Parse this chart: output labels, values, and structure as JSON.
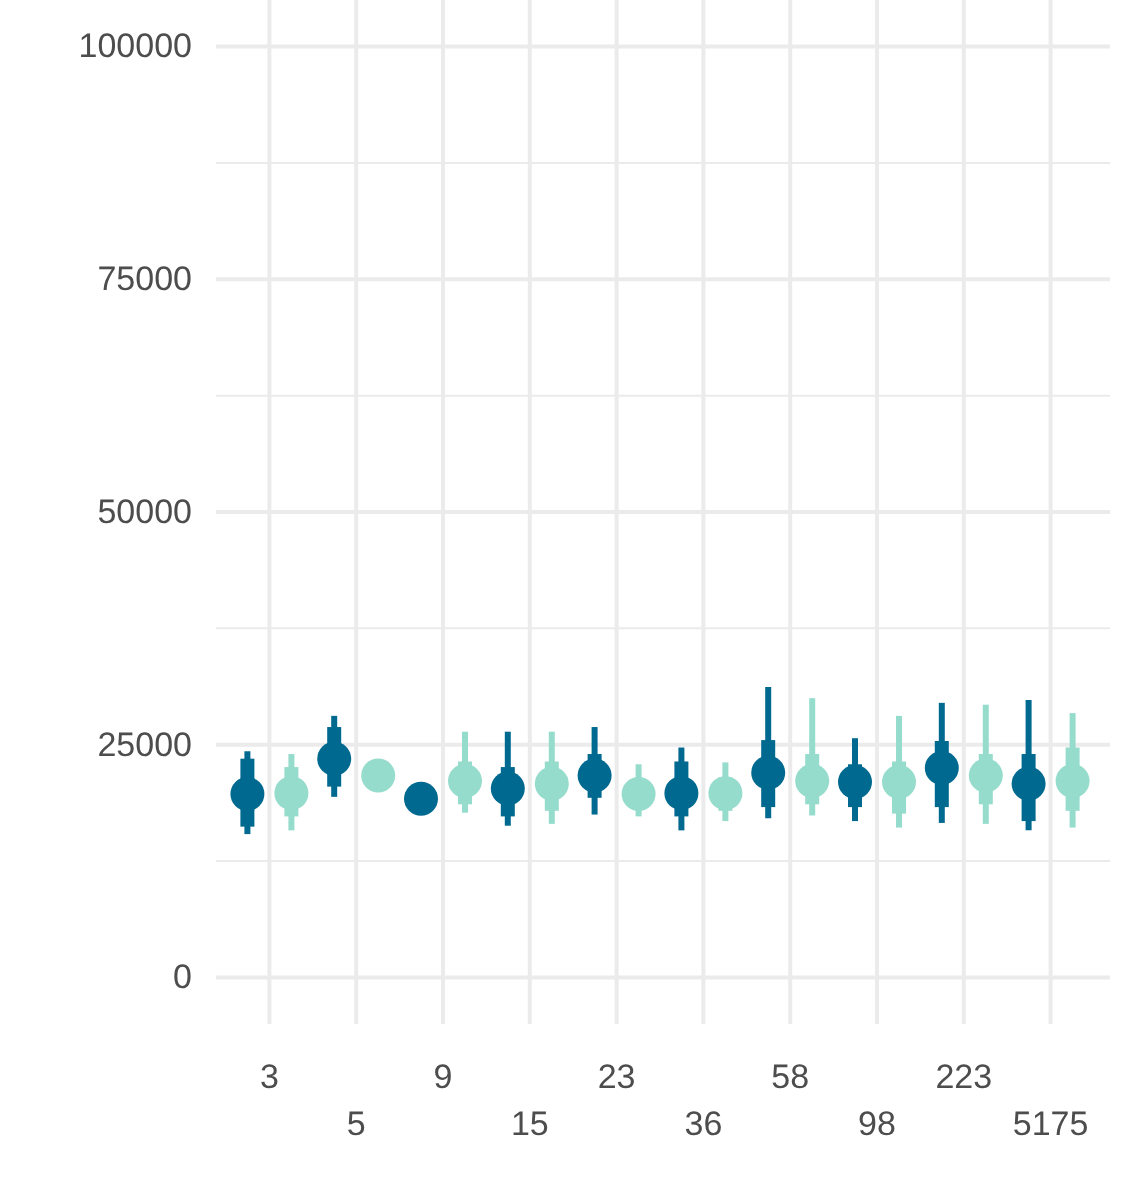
{
  "chart_data": {
    "type": "box",
    "categories": [
      "3",
      "5",
      "9",
      "15",
      "23",
      "36",
      "58",
      "98",
      "223",
      "5175"
    ],
    "ylim": [
      -5000,
      105000
    ],
    "yticks": [
      0,
      25000,
      50000,
      75000,
      100000
    ],
    "grid": true,
    "series": [
      {
        "color": "#00698f",
        "boxes": [
          {
            "low": 15400,
            "q1": 16200,
            "median": 19700,
            "q3": 23500,
            "high": 24300
          },
          {
            "low": 19400,
            "q1": 20500,
            "median": 23500,
            "q3": 26900,
            "high": 28100
          },
          {
            "low": 18400,
            "q1": 18700,
            "median": 19200,
            "q3": 19700,
            "high": 20000
          },
          {
            "low": 16300,
            "q1": 17300,
            "median": 20300,
            "q3": 22600,
            "high": 26400
          },
          {
            "low": 17500,
            "q1": 19300,
            "median": 21700,
            "q3": 24000,
            "high": 26900
          },
          {
            "low": 15800,
            "q1": 17300,
            "median": 19800,
            "q3": 23200,
            "high": 24700
          },
          {
            "low": 17100,
            "q1": 18300,
            "median": 22000,
            "q3": 25500,
            "high": 31200
          },
          {
            "low": 16800,
            "q1": 18300,
            "median": 21000,
            "q3": 22900,
            "high": 25700
          },
          {
            "low": 16600,
            "q1": 18300,
            "median": 22500,
            "q3": 25400,
            "high": 29500
          },
          {
            "low": 15800,
            "q1": 16800,
            "median": 20800,
            "q3": 24000,
            "high": 29800
          }
        ]
      },
      {
        "color": "#96dccc",
        "boxes": [
          {
            "low": 15800,
            "q1": 17300,
            "median": 19800,
            "q3": 22600,
            "high": 24000
          },
          {
            "low": 20800,
            "q1": 21000,
            "median": 21700,
            "q3": 22300,
            "high": 22500
          },
          {
            "low": 17700,
            "q1": 18600,
            "median": 21100,
            "q3": 23200,
            "high": 26400
          },
          {
            "low": 16500,
            "q1": 17900,
            "median": 20800,
            "q3": 23200,
            "high": 26400
          },
          {
            "low": 17300,
            "q1": 18300,
            "median": 19700,
            "q3": 21100,
            "high": 22900
          },
          {
            "low": 16800,
            "q1": 17900,
            "median": 19800,
            "q3": 21500,
            "high": 23100
          },
          {
            "low": 17400,
            "q1": 18600,
            "median": 21100,
            "q3": 24000,
            "high": 30000
          },
          {
            "low": 16100,
            "q1": 17600,
            "median": 21000,
            "q3": 23200,
            "high": 28100
          },
          {
            "low": 16500,
            "q1": 18600,
            "median": 21700,
            "q3": 24000,
            "high": 29300
          },
          {
            "low": 16100,
            "q1": 17900,
            "median": 21100,
            "q3": 24700,
            "high": 28400
          }
        ]
      }
    ]
  }
}
